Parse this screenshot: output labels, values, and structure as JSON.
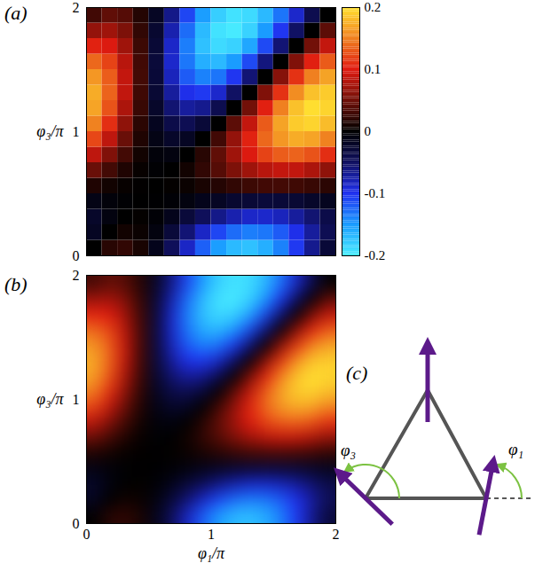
{
  "chart_data": [
    {
      "type": "heatmap",
      "title": "(a)",
      "y_label": "φ₃/π",
      "xlim": [
        0,
        2
      ],
      "ylim": [
        0,
        2
      ],
      "yticks": [
        0,
        1,
        2
      ],
      "tick_labels": "y",
      "colorbar": {
        "range": [
          -0.2,
          0.2
        ],
        "ticks": [
          -0.2,
          -0.1,
          0,
          0.1,
          0.2
        ]
      },
      "values": [
        [
          0,
          0.018,
          0.022,
          0.011,
          -0.014,
          -0.047,
          -0.085,
          -0.122,
          -0.151,
          -0.169,
          -0.173,
          -0.162,
          -0.138,
          -0.104,
          -0.066,
          -0.029
        ],
        [
          -0.018,
          0,
          0.008,
          0.005,
          -0.008,
          -0.03,
          -0.057,
          -0.085,
          -0.11,
          -0.128,
          -0.136,
          -0.133,
          -0.12,
          -0.098,
          -0.071,
          -0.043
        ],
        [
          -0.022,
          -0.008,
          0,
          0.002,
          -0.003,
          -0.014,
          -0.03,
          -0.047,
          -0.064,
          -0.077,
          -0.086,
          -0.087,
          -0.082,
          -0.071,
          -0.056,
          -0.038
        ],
        [
          -0.011,
          -0.005,
          -0.002,
          0,
          -0.001,
          -0.003,
          -0.008,
          -0.014,
          -0.019,
          -0.025,
          -0.028,
          -0.03,
          -0.029,
          -0.027,
          -0.022,
          -0.016
        ],
        [
          0.014,
          0.008,
          0.003,
          0.001,
          0,
          0.002,
          0.005,
          0.011,
          0.016,
          0.022,
          0.027,
          0.029,
          0.03,
          0.028,
          0.025,
          0.019
        ],
        [
          0.047,
          0.03,
          0.014,
          0.003,
          -0.002,
          0,
          0.008,
          0.022,
          0.038,
          0.056,
          0.071,
          0.082,
          0.087,
          0.086,
          0.077,
          0.064
        ],
        [
          0.085,
          0.057,
          0.03,
          0.008,
          -0.005,
          -0.008,
          0,
          0.018,
          0.043,
          0.071,
          0.098,
          0.12,
          0.133,
          0.136,
          0.128,
          0.11
        ],
        [
          0.122,
          0.085,
          0.047,
          0.014,
          -0.011,
          -0.022,
          -0.018,
          0,
          0.029,
          0.066,
          0.104,
          0.138,
          0.162,
          0.173,
          0.169,
          0.151
        ],
        [
          0.151,
          0.11,
          0.064,
          0.019,
          -0.016,
          -0.038,
          -0.043,
          -0.029,
          0,
          0.041,
          0.087,
          0.132,
          0.168,
          0.189,
          0.194,
          0.181
        ],
        [
          0.169,
          0.128,
          0.077,
          0.025,
          -0.022,
          -0.056,
          -0.071,
          -0.066,
          -0.041,
          0,
          0.051,
          0.103,
          0.15,
          0.184,
          0.199,
          0.194
        ],
        [
          0.173,
          0.136,
          0.086,
          0.028,
          -0.027,
          -0.071,
          -0.098,
          -0.104,
          -0.087,
          -0.051,
          0,
          0.057,
          0.112,
          0.157,
          0.184,
          0.189
        ],
        [
          0.162,
          0.133,
          0.087,
          0.03,
          -0.029,
          -0.082,
          -0.12,
          -0.138,
          -0.132,
          -0.103,
          -0.057,
          0,
          0.06,
          0.112,
          0.15,
          0.168
        ],
        [
          0.138,
          0.12,
          0.082,
          0.029,
          -0.03,
          -0.087,
          -0.133,
          -0.162,
          -0.168,
          -0.15,
          -0.112,
          -0.06,
          0,
          0.057,
          0.103,
          0.132
        ],
        [
          0.104,
          0.098,
          0.071,
          0.027,
          -0.028,
          -0.086,
          -0.136,
          -0.173,
          -0.189,
          -0.184,
          -0.157,
          -0.112,
          -0.057,
          0,
          0.051,
          0.087
        ],
        [
          0.066,
          0.071,
          0.056,
          0.022,
          -0.025,
          -0.077,
          -0.128,
          -0.169,
          -0.194,
          -0.199,
          -0.184,
          -0.15,
          -0.103,
          -0.051,
          0,
          0.041
        ],
        [
          0.029,
          0.043,
          0.038,
          0.016,
          -0.019,
          -0.064,
          -0.11,
          -0.151,
          -0.181,
          -0.194,
          -0.189,
          -0.168,
          -0.132,
          -0.087,
          -0.041,
          0
        ]
      ]
    },
    {
      "type": "smooth_heatmap",
      "title": "(b)",
      "x_label": "φ₁/π",
      "y_label": "φ₃/π",
      "xlim": [
        0,
        2
      ],
      "ylim": [
        0,
        2
      ],
      "xticks": [
        0,
        1,
        2
      ],
      "yticks": [
        0,
        1,
        2
      ],
      "values": [
        [
          0,
          0.018,
          0.022,
          0.011,
          -0.014,
          -0.047,
          -0.085,
          -0.122,
          -0.151,
          -0.169,
          -0.173,
          -0.162,
          -0.138,
          -0.104,
          -0.066,
          -0.029
        ],
        [
          -0.018,
          0,
          0.008,
          0.005,
          -0.008,
          -0.03,
          -0.057,
          -0.085,
          -0.11,
          -0.128,
          -0.136,
          -0.133,
          -0.12,
          -0.098,
          -0.071,
          -0.043
        ],
        [
          -0.022,
          -0.008,
          0,
          0.002,
          -0.003,
          -0.014,
          -0.03,
          -0.047,
          -0.064,
          -0.077,
          -0.086,
          -0.087,
          -0.082,
          -0.071,
          -0.056,
          -0.038
        ],
        [
          -0.011,
          -0.005,
          -0.002,
          0,
          -0.001,
          -0.003,
          -0.008,
          -0.014,
          -0.019,
          -0.025,
          -0.028,
          -0.03,
          -0.029,
          -0.027,
          -0.022,
          -0.016
        ],
        [
          0.014,
          0.008,
          0.003,
          0.001,
          0,
          0.002,
          0.005,
          0.011,
          0.016,
          0.022,
          0.027,
          0.029,
          0.03,
          0.028,
          0.025,
          0.019
        ],
        [
          0.047,
          0.03,
          0.014,
          0.003,
          -0.002,
          0,
          0.008,
          0.022,
          0.038,
          0.056,
          0.071,
          0.082,
          0.087,
          0.086,
          0.077,
          0.064
        ],
        [
          0.085,
          0.057,
          0.03,
          0.008,
          -0.005,
          -0.008,
          0,
          0.018,
          0.043,
          0.071,
          0.098,
          0.12,
          0.133,
          0.136,
          0.128,
          0.11
        ],
        [
          0.122,
          0.085,
          0.047,
          0.014,
          -0.011,
          -0.022,
          -0.018,
          0,
          0.029,
          0.066,
          0.104,
          0.138,
          0.162,
          0.173,
          0.169,
          0.151
        ],
        [
          0.151,
          0.11,
          0.064,
          0.019,
          -0.016,
          -0.038,
          -0.043,
          -0.029,
          0,
          0.041,
          0.087,
          0.132,
          0.168,
          0.189,
          0.194,
          0.181
        ],
        [
          0.169,
          0.128,
          0.077,
          0.025,
          -0.022,
          -0.056,
          -0.071,
          -0.066,
          -0.041,
          0,
          0.051,
          0.103,
          0.15,
          0.184,
          0.199,
          0.194
        ],
        [
          0.173,
          0.136,
          0.086,
          0.028,
          -0.027,
          -0.071,
          -0.098,
          -0.104,
          -0.087,
          -0.051,
          0,
          0.057,
          0.112,
          0.157,
          0.184,
          0.189
        ],
        [
          0.162,
          0.133,
          0.087,
          0.03,
          -0.029,
          -0.082,
          -0.12,
          -0.138,
          -0.132,
          -0.103,
          -0.057,
          0,
          0.06,
          0.112,
          0.15,
          0.168
        ],
        [
          0.138,
          0.12,
          0.082,
          0.029,
          -0.03,
          -0.087,
          -0.133,
          -0.162,
          -0.168,
          -0.15,
          -0.112,
          -0.06,
          0,
          0.057,
          0.103,
          0.132
        ],
        [
          0.104,
          0.098,
          0.071,
          0.027,
          -0.028,
          -0.086,
          -0.136,
          -0.173,
          -0.189,
          -0.184,
          -0.157,
          -0.112,
          -0.057,
          0,
          0.051,
          0.087
        ],
        [
          0.066,
          0.071,
          0.056,
          0.022,
          -0.025,
          -0.077,
          -0.128,
          -0.169,
          -0.194,
          -0.199,
          -0.184,
          -0.15,
          -0.103,
          -0.051,
          0,
          0.041
        ],
        [
          0.029,
          0.043,
          0.038,
          0.016,
          -0.019,
          -0.064,
          -0.11,
          -0.151,
          -0.181,
          -0.194,
          -0.189,
          -0.168,
          -0.132,
          -0.087,
          -0.041,
          0
        ]
      ]
    }
  ],
  "diagram": {
    "title": "(c)",
    "angles": [
      {
        "label": "φ₁"
      },
      {
        "label": "φ₃"
      }
    ]
  }
}
